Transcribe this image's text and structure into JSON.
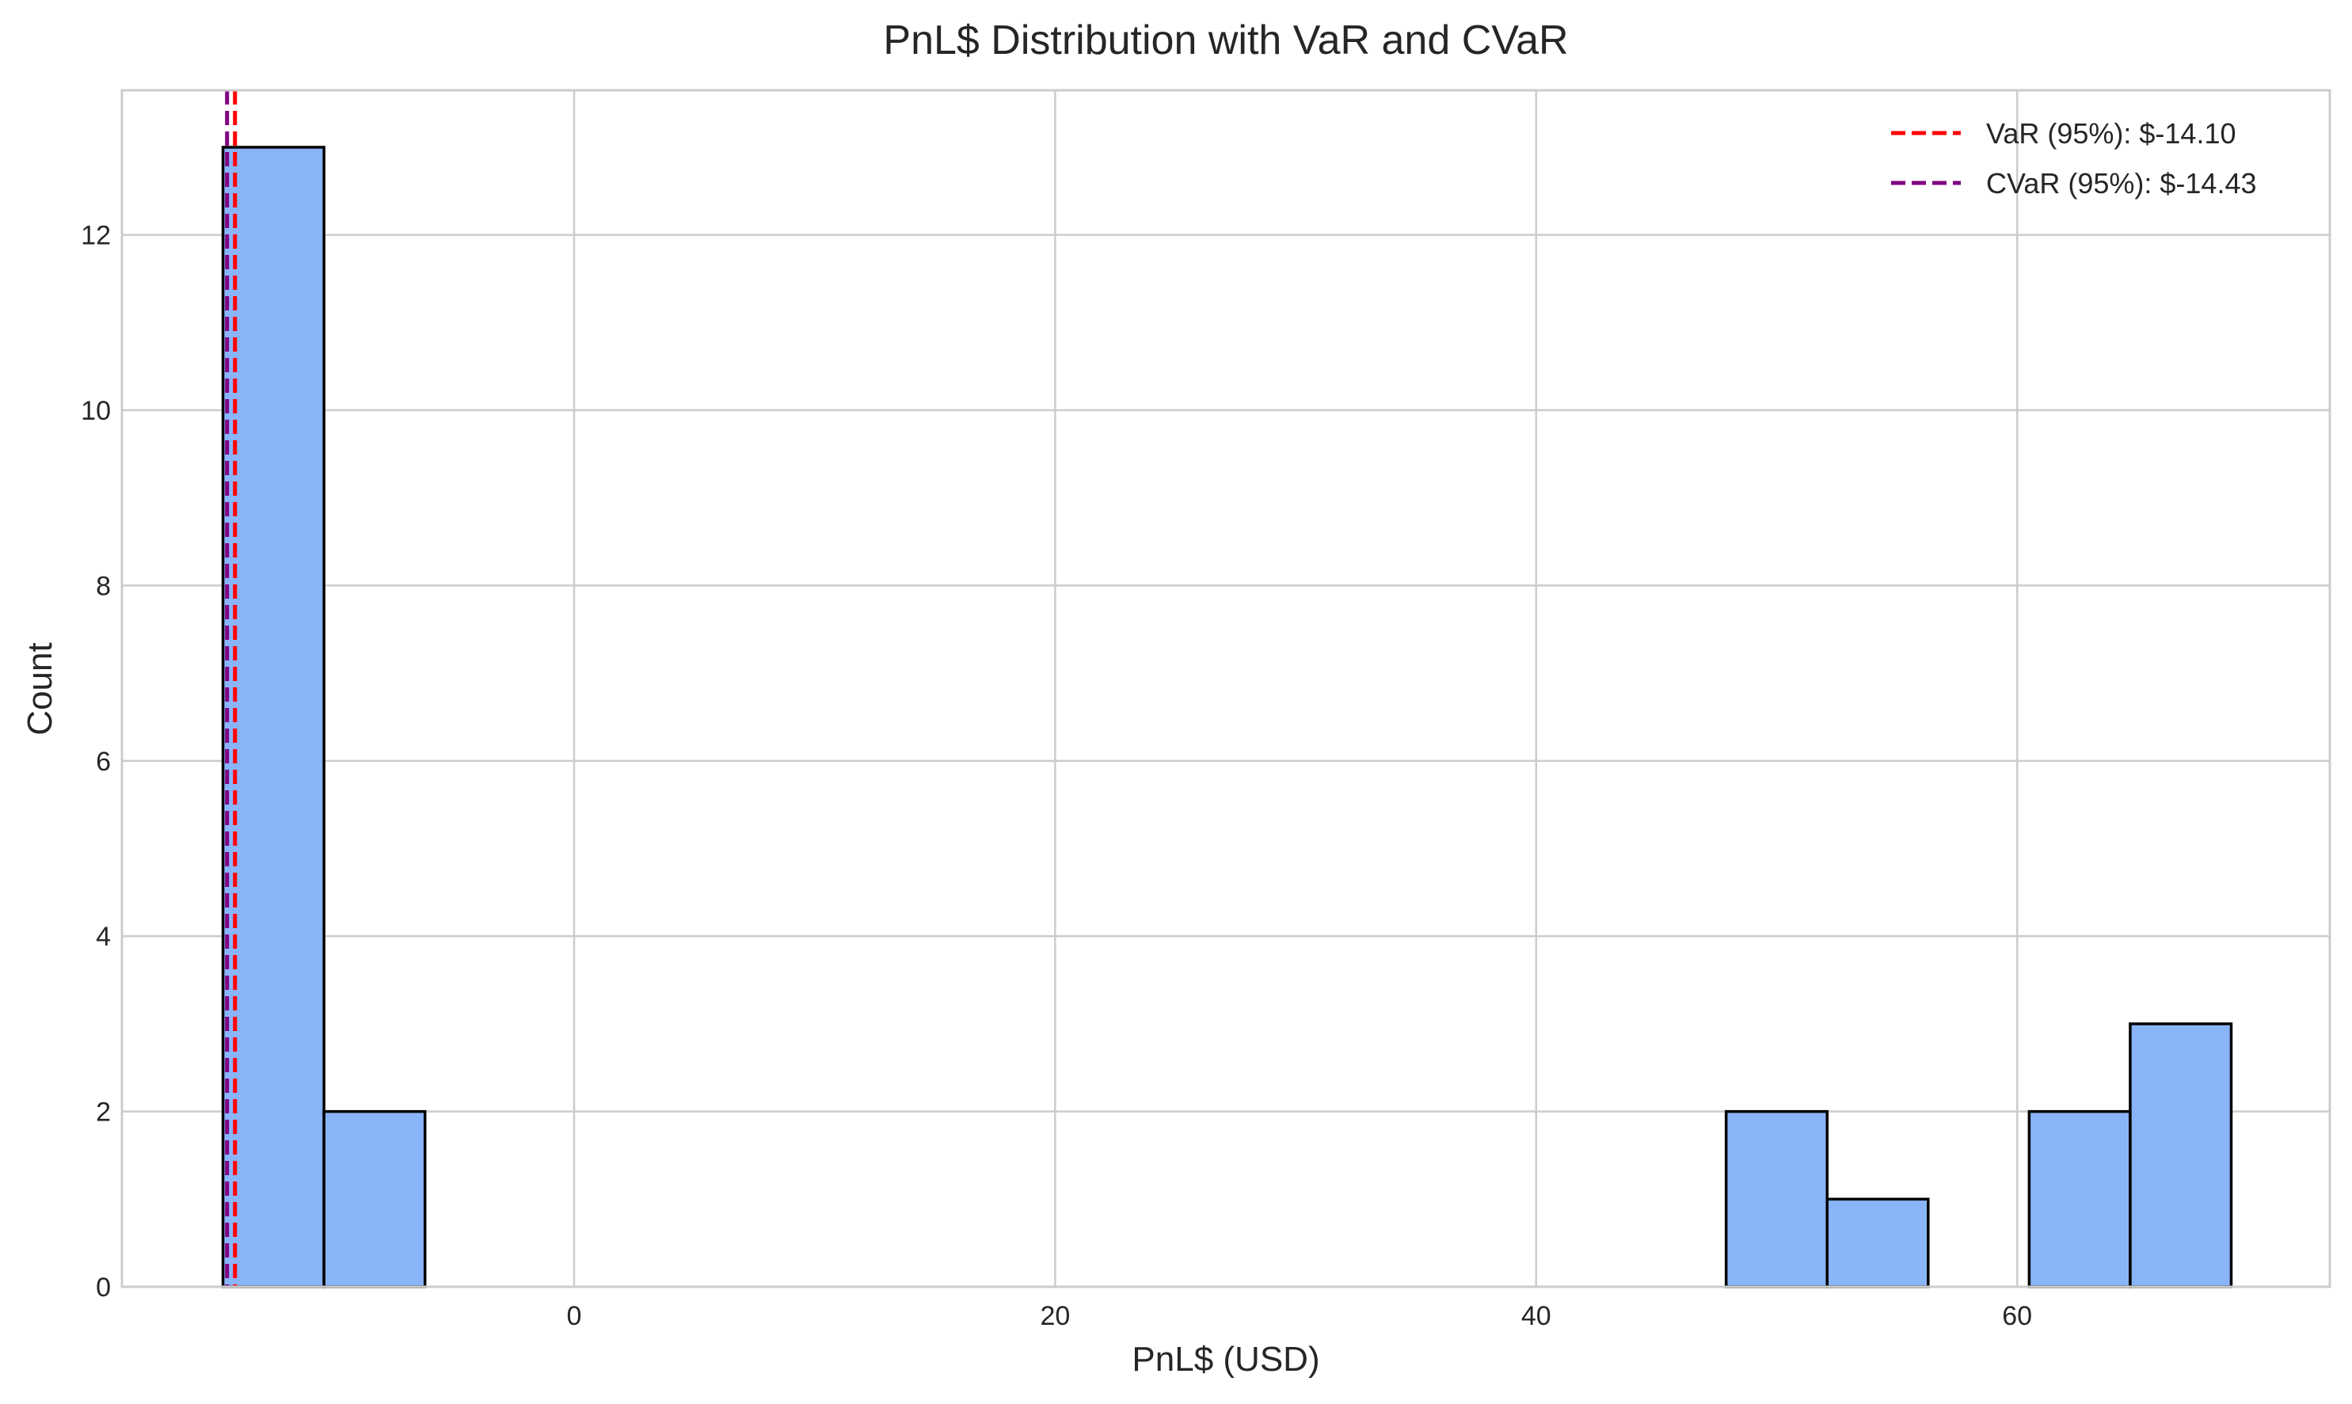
{
  "chart_data": {
    "type": "bar",
    "title": "PnL$ Distribution with VaR and CVaR",
    "xlabel": "PnL$ (USD)",
    "ylabel": "Count",
    "xlim": [
      -18.8,
      73.0
    ],
    "ylim": [
      0,
      13.65
    ],
    "x_ticks": [
      0,
      20,
      40,
      60
    ],
    "y_ticks": [
      0,
      2,
      4,
      6,
      8,
      10,
      12
    ],
    "grid": true,
    "bar_color": "#8ab4f8",
    "bar_edge_color": "#000000",
    "bins": [
      {
        "x0": -14.6,
        "x1": -10.4,
        "count": 13
      },
      {
        "x0": -10.4,
        "x1": -6.2,
        "count": 2
      },
      {
        "x0": 47.9,
        "x1": 52.1,
        "count": 2
      },
      {
        "x0": 52.1,
        "x1": 56.3,
        "count": 1
      },
      {
        "x0": 60.5,
        "x1": 64.7,
        "count": 2
      },
      {
        "x0": 64.7,
        "x1": 68.9,
        "count": 3
      }
    ],
    "reference_lines": [
      {
        "name": "VaR (95%): $-14.10",
        "x": -14.1,
        "color": "#ff0000",
        "style": "dashed"
      },
      {
        "name": "CVaR (95%): $-14.43",
        "x": -14.43,
        "color": "#800080",
        "style": "dashed"
      }
    ],
    "legend_position": "top-right"
  }
}
